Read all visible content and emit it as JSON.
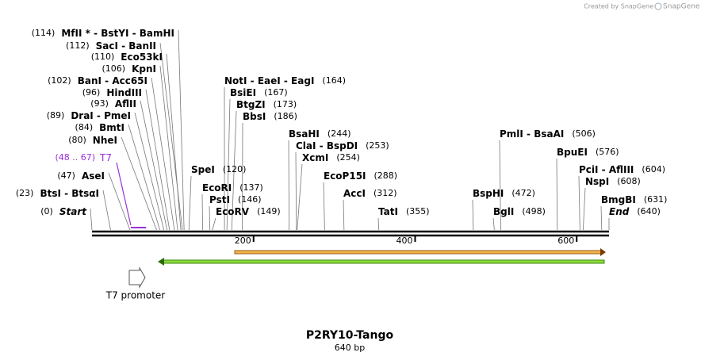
{
  "header": {
    "credit": "Created by SnapGene"
  },
  "map": {
    "title": "P2RY10-Tango",
    "length_label": "640 bp",
    "length": 640,
    "ruler_ticks": [
      200,
      400,
      600
    ],
    "left_sites": [
      {
        "position": {
          "value": 114,
          "label": "(114)"
        },
        "name": "MfII * - BstYI - BamHI"
      },
      {
        "position": {
          "value": 112,
          "label": "(112)"
        },
        "name": "SacI - BanII"
      },
      {
        "position": {
          "value": 110,
          "label": "(110)"
        },
        "name": "Eco53kI"
      },
      {
        "position": {
          "value": 106,
          "label": "(106)"
        },
        "name": "KpnI"
      },
      {
        "position": {
          "value": 102,
          "label": "(102)"
        },
        "name": "BanI - Acc65I"
      },
      {
        "position": {
          "value": 96,
          "label": "(96)"
        },
        "name": "HindIII"
      },
      {
        "position": {
          "value": 93,
          "label": "(93)"
        },
        "name": "AflII"
      },
      {
        "position": {
          "value": 89,
          "label": "(89)"
        },
        "name": "DraI - PmeI"
      },
      {
        "position": {
          "value": 84,
          "label": "(84)"
        },
        "name": "BmtI"
      },
      {
        "position": {
          "value": 80,
          "label": "(80)"
        },
        "name": "NheI"
      },
      {
        "position": {
          "value": 47,
          "label": "(47)"
        },
        "name": "AseI"
      },
      {
        "position": {
          "value": 23,
          "label": "(23)"
        },
        "name": "BtsI - BtsαI"
      },
      {
        "position": {
          "value": 0,
          "label": "(0)"
        },
        "name": "Start"
      }
    ],
    "right_sites": [
      {
        "name": "NotI - EaeI - EagI",
        "position": {
          "value": 164,
          "label": "(164)"
        }
      },
      {
        "name": "BsiEI",
        "position": {
          "value": 167,
          "label": "(167)"
        }
      },
      {
        "name": "BtgZI",
        "position": {
          "value": 173,
          "label": "(173)"
        }
      },
      {
        "name": "BbsI",
        "position": {
          "value": 186,
          "label": "(186)"
        }
      },
      {
        "name": "SpeI",
        "position": {
          "value": 120,
          "label": "(120)"
        }
      },
      {
        "name": "EcoRI",
        "position": {
          "value": 137,
          "label": "(137)"
        }
      },
      {
        "name": "PstI",
        "position": {
          "value": 146,
          "label": "(146)"
        }
      },
      {
        "name": "EcoRV",
        "position": {
          "value": 149,
          "label": "(149)"
        }
      },
      {
        "name": "BsaHI",
        "position": {
          "value": 244,
          "label": "(244)"
        }
      },
      {
        "name": "ClaI - BspDI",
        "position": {
          "value": 253,
          "label": "(253)"
        }
      },
      {
        "name": "XcmI",
        "position": {
          "value": 254,
          "label": "(254)"
        }
      },
      {
        "name": "EcoP15I",
        "position": {
          "value": 288,
          "label": "(288)"
        }
      },
      {
        "name": "AccI",
        "position": {
          "value": 312,
          "label": "(312)"
        }
      },
      {
        "name": "TatI",
        "position": {
          "value": 355,
          "label": "(355)"
        }
      },
      {
        "name": "PmlI - BsaAI",
        "position": {
          "value": 506,
          "label": "(506)"
        }
      },
      {
        "name": "BpuEI",
        "position": {
          "value": 576,
          "label": "(576)"
        }
      },
      {
        "name": "PciI - AflIII",
        "position": {
          "value": 604,
          "label": "(604)"
        }
      },
      {
        "name": "NspI",
        "position": {
          "value": 608,
          "label": "(608)"
        }
      },
      {
        "name": "BspHI",
        "position": {
          "value": 472,
          "label": "(472)"
        }
      },
      {
        "name": "BglI",
        "position": {
          "value": 498,
          "label": "(498)"
        }
      },
      {
        "name": "BmgBI",
        "position": {
          "value": 631,
          "label": "(631)"
        }
      },
      {
        "name": "End",
        "position": {
          "value": 640,
          "label": "(640)"
        }
      }
    ],
    "primer": {
      "name": "T7",
      "start": 48,
      "end": 67,
      "label": "(48 .. 67)"
    },
    "promoter": {
      "name": "T7 promoter"
    }
  }
}
